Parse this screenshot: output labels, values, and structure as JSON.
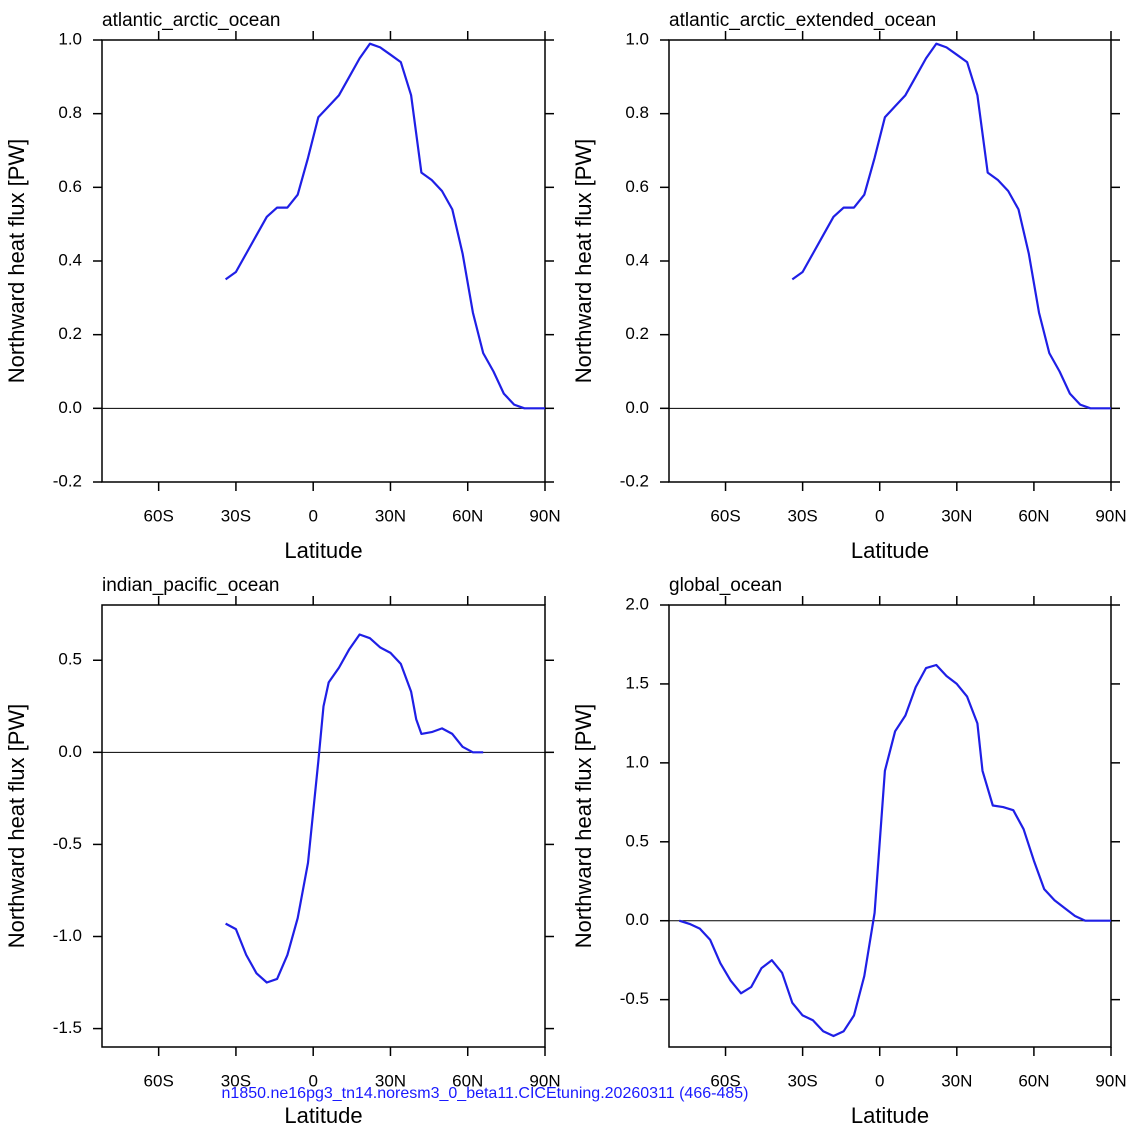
{
  "chart_data": [
    {
      "type": "line",
      "title": "atlantic_arctic_ocean",
      "xlabel": "Latitude",
      "ylabel": "Northward heat flux [PW]",
      "color": "#1f1fe6",
      "x": [
        -34,
        -30,
        -26,
        -22,
        -18,
        -14,
        -10,
        -6,
        -2,
        2,
        6,
        10,
        14,
        18,
        22,
        26,
        30,
        34,
        38,
        42,
        46,
        50,
        54,
        58,
        62,
        66,
        70,
        74,
        78,
        82,
        86,
        90
      ],
      "values": [
        0.35,
        0.37,
        0.42,
        0.47,
        0.52,
        0.545,
        0.545,
        0.58,
        0.68,
        0.79,
        0.82,
        0.85,
        0.9,
        0.95,
        0.99,
        0.98,
        0.96,
        0.94,
        0.85,
        0.64,
        0.62,
        0.59,
        0.54,
        0.42,
        0.26,
        0.15,
        0.1,
        0.04,
        0.01,
        0.0,
        0.0,
        0.0
      ],
      "xlim": [
        -82,
        90
      ],
      "xticks": [
        {
          "value": -60,
          "label": "60S"
        },
        {
          "value": -30,
          "label": "30S"
        },
        0,
        {
          "value": 30,
          "label": "30N"
        },
        {
          "value": 60,
          "label": "60N"
        },
        {
          "value": 90,
          "label": "90N"
        }
      ],
      "ylim": [
        -0.2,
        1.0
      ],
      "yticks": [
        -0.2,
        {
          "value": 0,
          "label": "0.0"
        },
        0.2,
        0.4,
        0.6,
        0.8,
        {
          "value": 1,
          "label": "1.0"
        }
      ]
    },
    {
      "type": "line",
      "title": "atlantic_arctic_extended_ocean",
      "xlabel": "Latitude",
      "ylabel": "Northward heat flux [PW]",
      "color": "#1f1fe6",
      "x": [
        -34,
        -30,
        -26,
        -22,
        -18,
        -14,
        -10,
        -6,
        -2,
        2,
        6,
        10,
        14,
        18,
        22,
        26,
        30,
        34,
        38,
        42,
        46,
        50,
        54,
        58,
        62,
        66,
        70,
        74,
        78,
        82,
        86,
        90
      ],
      "values": [
        0.35,
        0.37,
        0.42,
        0.47,
        0.52,
        0.545,
        0.545,
        0.58,
        0.68,
        0.79,
        0.82,
        0.85,
        0.9,
        0.95,
        0.99,
        0.98,
        0.96,
        0.94,
        0.85,
        0.64,
        0.62,
        0.59,
        0.54,
        0.42,
        0.26,
        0.15,
        0.1,
        0.04,
        0.01,
        0.0,
        0.0,
        0.0
      ],
      "xlim": [
        -82,
        90
      ],
      "xticks": [
        {
          "value": -60,
          "label": "60S"
        },
        {
          "value": -30,
          "label": "30S"
        },
        0,
        {
          "value": 30,
          "label": "30N"
        },
        {
          "value": 60,
          "label": "60N"
        },
        {
          "value": 90,
          "label": "90N"
        }
      ],
      "ylim": [
        -0.2,
        1.0
      ],
      "yticks": [
        -0.2,
        {
          "value": 0,
          "label": "0.0"
        },
        0.2,
        0.4,
        0.6,
        0.8,
        {
          "value": 1,
          "label": "1.0"
        }
      ]
    },
    {
      "type": "line",
      "title": "indian_pacific_ocean",
      "xlabel": "Latitude",
      "ylabel": "Northward heat flux [PW]",
      "color": "#1f1fe6",
      "x": [
        -34,
        -30,
        -26,
        -22,
        -18,
        -14,
        -10,
        -6,
        -2,
        2,
        4,
        6,
        10,
        14,
        18,
        22,
        26,
        30,
        34,
        38,
        40,
        42,
        46,
        50,
        54,
        58,
        62,
        66
      ],
      "values": [
        -0.93,
        -0.96,
        -1.1,
        -1.2,
        -1.25,
        -1.23,
        -1.1,
        -0.9,
        -0.6,
        -0.05,
        0.25,
        0.38,
        0.46,
        0.56,
        0.64,
        0.62,
        0.57,
        0.54,
        0.48,
        0.33,
        0.18,
        0.1,
        0.11,
        0.13,
        0.1,
        0.03,
        0.0,
        0.0
      ],
      "xlim": [
        -82,
        90
      ],
      "xticks": [
        {
          "value": -60,
          "label": "60S"
        },
        {
          "value": -30,
          "label": "30S"
        },
        0,
        {
          "value": 30,
          "label": "30N"
        },
        {
          "value": 60,
          "label": "60N"
        },
        {
          "value": 90,
          "label": "90N"
        }
      ],
      "ylim": [
        -1.6,
        0.8
      ],
      "yticks": [
        -1.5,
        {
          "value": -1,
          "label": "-1.0"
        },
        -0.5,
        {
          "value": 0,
          "label": "0.0"
        },
        0.5
      ]
    },
    {
      "type": "line",
      "title": "global_ocean",
      "xlabel": "Latitude",
      "ylabel": "Northward heat flux [PW]",
      "color": "#1f1fe6",
      "x": [
        -78,
        -74,
        -70,
        -66,
        -62,
        -58,
        -54,
        -50,
        -46,
        -42,
        -38,
        -34,
        -30,
        -26,
        -22,
        -18,
        -14,
        -10,
        -6,
        -2,
        2,
        6,
        10,
        14,
        18,
        22,
        26,
        30,
        34,
        38,
        40,
        44,
        48,
        52,
        56,
        60,
        64,
        68,
        72,
        76,
        80,
        90
      ],
      "values": [
        0.0,
        -0.02,
        -0.05,
        -0.12,
        -0.27,
        -0.38,
        -0.46,
        -0.42,
        -0.3,
        -0.25,
        -0.33,
        -0.52,
        -0.6,
        -0.63,
        -0.7,
        -0.73,
        -0.7,
        -0.6,
        -0.35,
        0.05,
        0.95,
        1.2,
        1.3,
        1.48,
        1.6,
        1.62,
        1.55,
        1.5,
        1.42,
        1.25,
        0.95,
        0.73,
        0.72,
        0.7,
        0.58,
        0.38,
        0.2,
        0.13,
        0.08,
        0.03,
        0.0,
        0.0
      ],
      "xlim": [
        -82,
        90
      ],
      "xticks": [
        {
          "value": -60,
          "label": "60S"
        },
        {
          "value": -30,
          "label": "30S"
        },
        0,
        {
          "value": 30,
          "label": "30N"
        },
        {
          "value": 60,
          "label": "60N"
        },
        {
          "value": 90,
          "label": "90N"
        }
      ],
      "ylim": [
        -0.8,
        2.0
      ],
      "yticks": [
        -0.5,
        {
          "value": 0,
          "label": "0.0"
        },
        0.5,
        {
          "value": 1,
          "label": "1.0"
        },
        1.5,
        {
          "value": 2,
          "label": "2.0"
        }
      ]
    }
  ],
  "footer": "n1850.ne16pg3_tn14.noresm3_0_beta11.CICEtuning.20260311 (466-485)"
}
